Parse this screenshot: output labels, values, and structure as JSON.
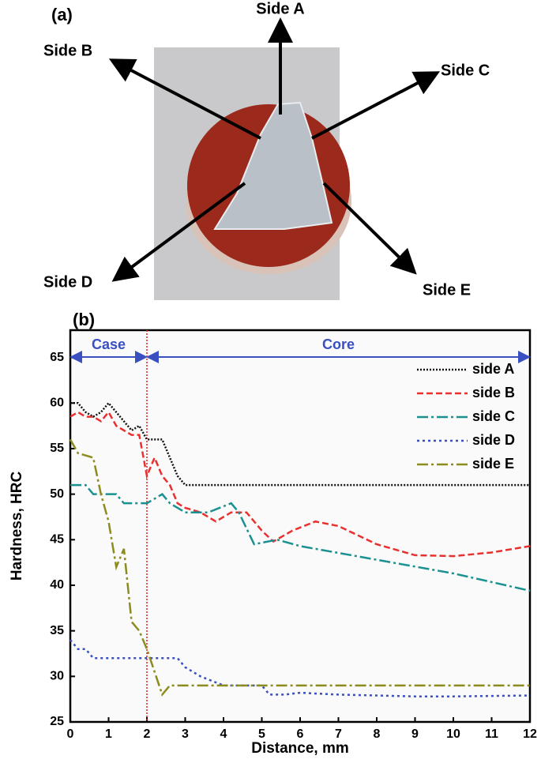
{
  "panel_a": {
    "label": "(a)",
    "sides": [
      "Side A",
      "Side B",
      "Side C",
      "Side D",
      "Side E"
    ]
  },
  "chart_data": {
    "type": "line",
    "panel_label": "(b)",
    "x_label": "Distance, mm",
    "y_label": "Hardness, HRC",
    "xlim": [
      0,
      12
    ],
    "ylim": [
      25,
      68
    ],
    "xticks": [
      0,
      1,
      2,
      3,
      4,
      5,
      6,
      7,
      8,
      9,
      10,
      11,
      12
    ],
    "yticks": [
      25,
      30,
      35,
      40,
      45,
      50,
      55,
      60,
      65
    ],
    "case_core_boundary": 2,
    "annotations": [
      "Case",
      "Core"
    ],
    "legend": "top-right",
    "series": [
      {
        "name": "side A",
        "color": "#111111",
        "style": "dotted",
        "x": [
          0,
          0.2,
          0.4,
          0.6,
          0.8,
          1.0,
          1.2,
          1.4,
          1.6,
          1.8,
          2.0,
          2.2,
          2.4,
          2.6,
          2.8,
          3.0,
          12
        ],
        "values": [
          60,
          60,
          59,
          58.5,
          59,
          60,
          59,
          58,
          57,
          57.5,
          56,
          56,
          56,
          54,
          52,
          51,
          51
        ]
      },
      {
        "name": "side B",
        "color": "#e8312f",
        "style": "dashed",
        "x": [
          0,
          0.2,
          0.4,
          0.6,
          0.8,
          1.0,
          1.2,
          1.4,
          1.6,
          1.8,
          2.0,
          2.2,
          2.4,
          2.6,
          2.8,
          3.0,
          3.4,
          3.8,
          4.2,
          4.6,
          5.0,
          5.3,
          5.8,
          6.4,
          7,
          8,
          9,
          10,
          11,
          12
        ],
        "values": [
          58.5,
          59,
          58.5,
          58.5,
          58,
          59,
          57.5,
          57,
          56.5,
          56.5,
          52,
          54,
          52,
          51,
          49,
          48.5,
          48,
          47,
          48,
          48,
          46,
          44.8,
          46,
          47,
          46.5,
          44.5,
          43.3,
          43.2,
          43.6,
          44.3
        ]
      },
      {
        "name": "side C",
        "color": "#1a9090",
        "style": "dashdot",
        "x": [
          0,
          0.4,
          0.6,
          1.2,
          1.4,
          2.0,
          2.4,
          2.6,
          3.0,
          3.6,
          4.2,
          4.4,
          4.8,
          5.4,
          6,
          8,
          10,
          12
        ],
        "values": [
          51,
          51,
          50,
          50,
          49,
          49,
          50,
          49,
          48,
          48,
          49,
          48,
          44.5,
          45,
          44.3,
          42.8,
          41.3,
          39.4
        ]
      },
      {
        "name": "side D",
        "color": "#3a4fc0",
        "style": "dotted-wide",
        "x": [
          0,
          0.2,
          0.4,
          0.6,
          1.0,
          2.0,
          2.4,
          2.8,
          3.0,
          3.4,
          4.0,
          5.0,
          5.2,
          5.6,
          6,
          7,
          8,
          9,
          10,
          12
        ],
        "values": [
          34,
          33,
          33,
          32,
          32,
          32,
          32,
          32,
          31,
          30,
          29,
          29,
          28,
          28,
          28.2,
          28,
          27.9,
          27.8,
          27.8,
          27.9
        ]
      },
      {
        "name": "side E",
        "color": "#8c8c1e",
        "style": "dashdot",
        "x": [
          0,
          0.2,
          0.6,
          0.8,
          1.0,
          1.2,
          1.4,
          1.6,
          1.8,
          2.0,
          2.4,
          2.6,
          12
        ],
        "values": [
          56,
          54.5,
          54,
          50,
          47,
          42,
          44,
          36,
          35,
          33,
          28,
          29,
          29
        ]
      }
    ]
  }
}
